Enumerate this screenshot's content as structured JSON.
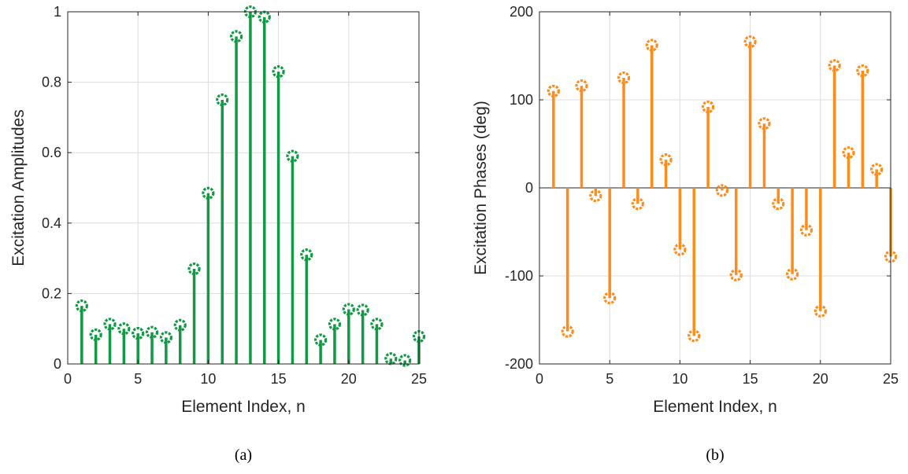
{
  "chart_data": [
    {
      "type": "stem",
      "xlabel": "Element Index, n",
      "ylabel": "Excitation Amplitudes",
      "caption": "(a)",
      "xlim": [
        0,
        25
      ],
      "ylim": [
        0,
        1
      ],
      "xticks": [
        0,
        5,
        10,
        15,
        20,
        25
      ],
      "yticks": [
        0,
        0.2,
        0.4,
        0.6,
        0.8,
        1
      ],
      "xtick_labels": [
        "0",
        "5",
        "10",
        "15",
        "20",
        "25"
      ],
      "ytick_labels": [
        "0",
        "0.2",
        "0.4",
        "0.6",
        "0.8",
        "1"
      ],
      "grid": true,
      "color": "#119944",
      "x": [
        1,
        2,
        3,
        4,
        5,
        6,
        7,
        8,
        9,
        10,
        11,
        12,
        13,
        14,
        15,
        16,
        17,
        18,
        19,
        20,
        21,
        22,
        23,
        24,
        25
      ],
      "y": [
        0.165,
        0.083,
        0.113,
        0.1,
        0.087,
        0.09,
        0.075,
        0.11,
        0.27,
        0.485,
        0.75,
        0.93,
        1.0,
        0.985,
        0.83,
        0.59,
        0.31,
        0.068,
        0.113,
        0.155,
        0.153,
        0.113,
        0.015,
        0.01,
        0.078
      ]
    },
    {
      "type": "stem",
      "xlabel": "Element Index, n",
      "ylabel": "Excitation Phases (deg)",
      "caption": "(b)",
      "xlim": [
        0,
        25
      ],
      "ylim": [
        -200,
        200
      ],
      "xticks": [
        0,
        5,
        10,
        15,
        20,
        25
      ],
      "yticks": [
        -200,
        -100,
        0,
        100,
        200
      ],
      "xtick_labels": [
        "0",
        "5",
        "10",
        "15",
        "20",
        "25"
      ],
      "ytick_labels": [
        "-200",
        "-100",
        "0",
        "100",
        "200"
      ],
      "grid": true,
      "color": "#ff8c1a",
      "x": [
        1,
        2,
        3,
        4,
        5,
        6,
        7,
        8,
        9,
        10,
        11,
        12,
        13,
        14,
        15,
        16,
        17,
        18,
        19,
        20,
        21,
        22,
        23,
        24,
        25
      ],
      "y": [
        110,
        -163,
        116,
        -9,
        -125,
        125,
        -18,
        162,
        32,
        -70,
        -168,
        92,
        -3,
        -99,
        166,
        73,
        -18,
        -98,
        -48,
        -140,
        139,
        40,
        133,
        21,
        -78
      ]
    }
  ]
}
